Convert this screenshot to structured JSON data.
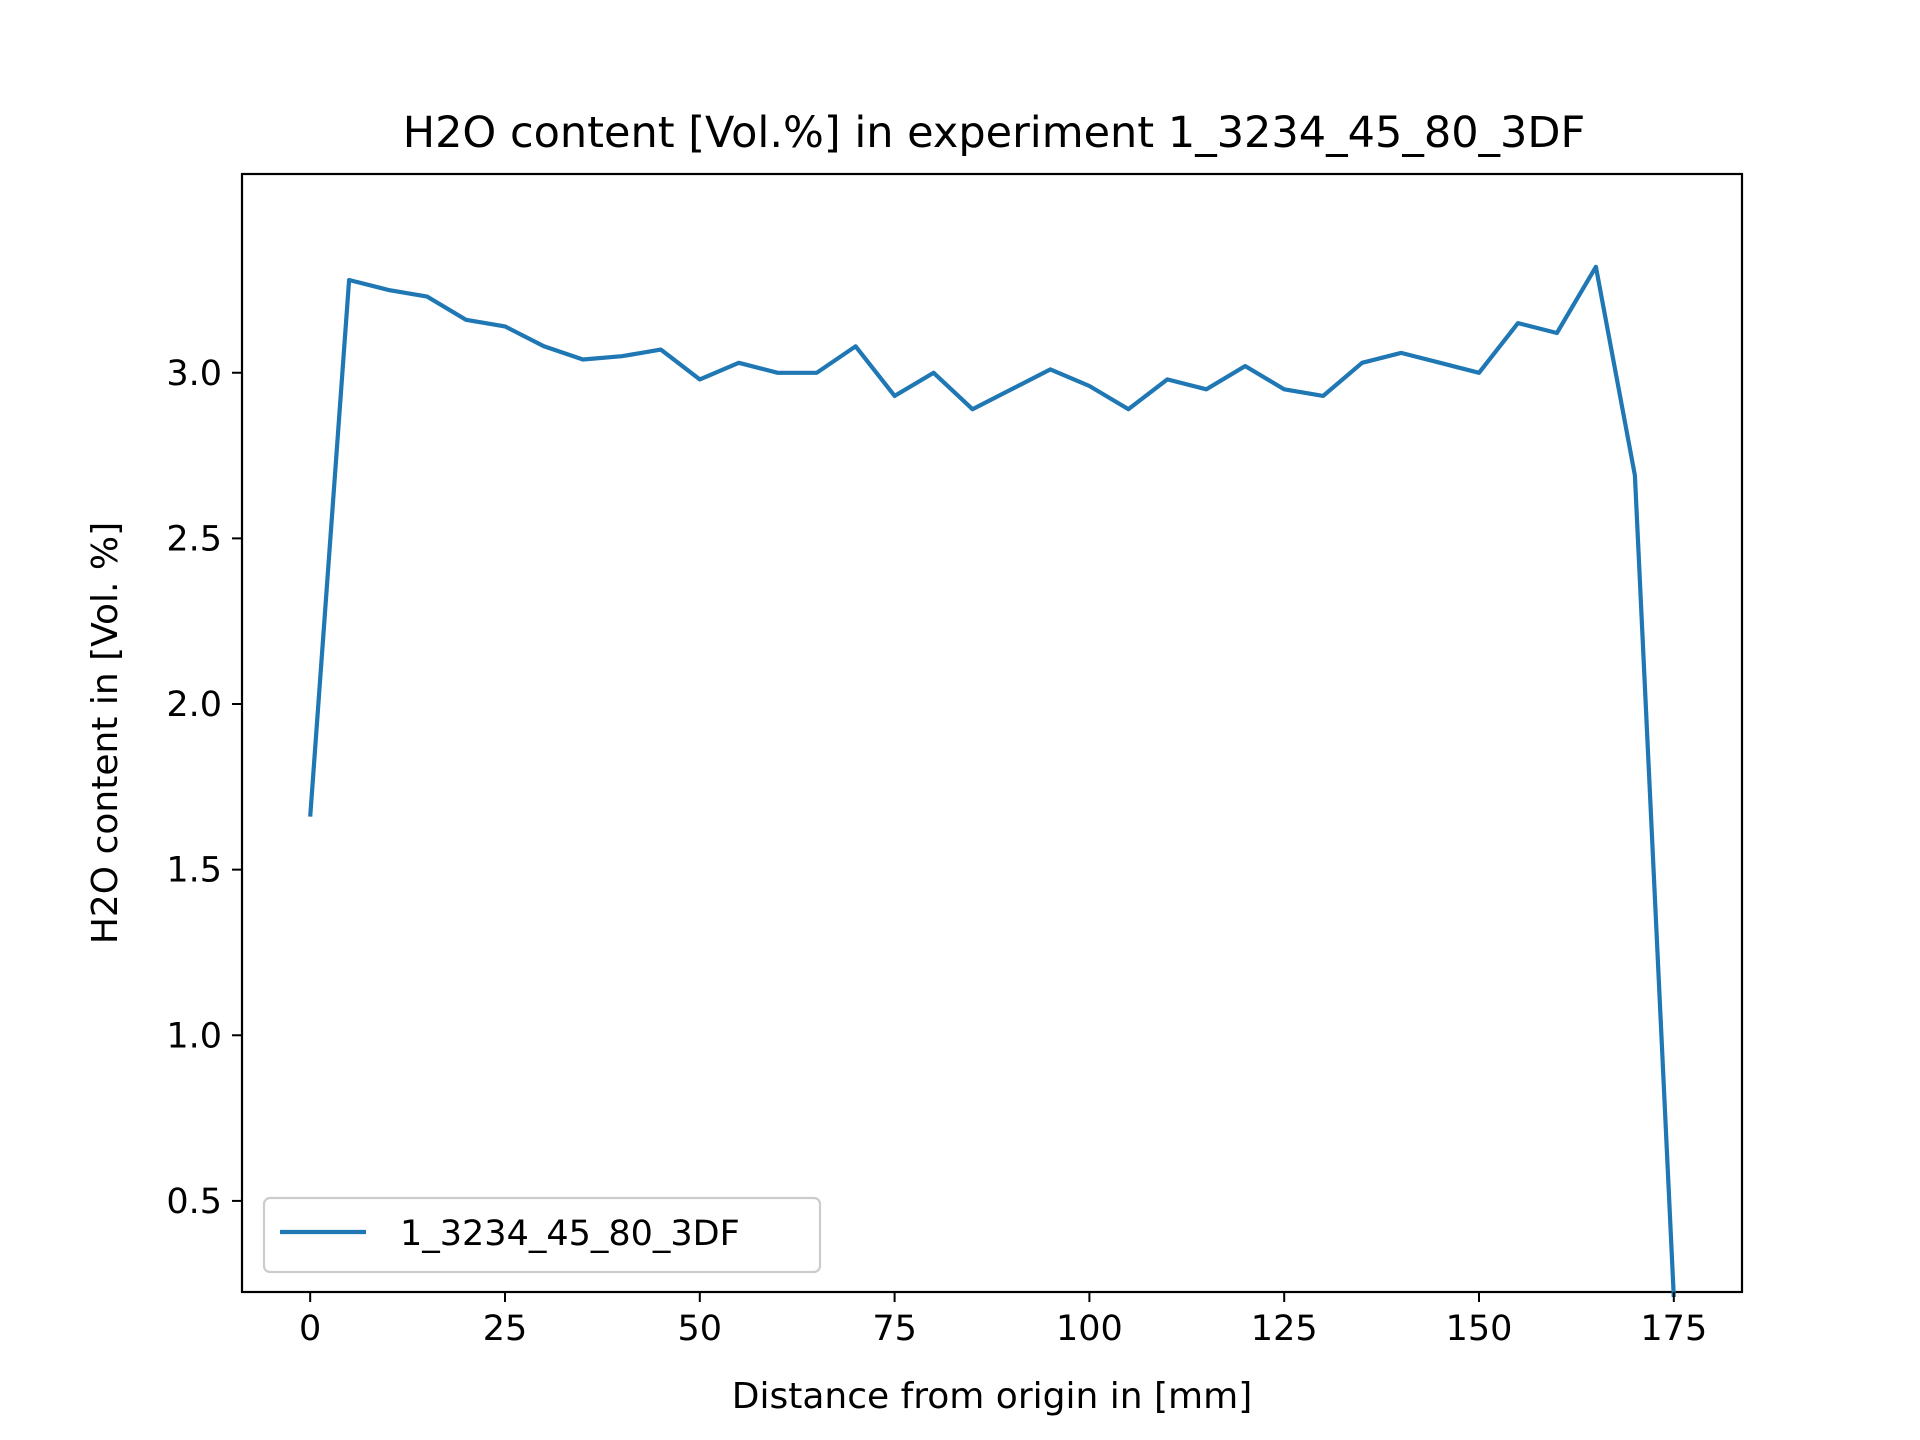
{
  "chart_data": {
    "type": "line",
    "title": "H2O content [Vol.%] in experiment 1_3234_45_80_3DF",
    "xlabel": "Distance from origin in [mm]",
    "ylabel": "H2O content in [Vol. %]",
    "xlim": [
      -8.75,
      183.75
    ],
    "ylim": [
      0.225,
      3.6
    ],
    "xticks": [
      0,
      25,
      50,
      75,
      100,
      125,
      150,
      175
    ],
    "xtick_labels": [
      "0",
      "25",
      "50",
      "75",
      "100",
      "125",
      "150",
      "175"
    ],
    "yticks": [
      0.5,
      1.0,
      1.5,
      2.0,
      2.5,
      3.0
    ],
    "ytick_labels": [
      "0.5",
      "1.0",
      "1.5",
      "2.0",
      "2.5",
      "3.0"
    ],
    "grid": false,
    "legend_position": "lower-left",
    "series": [
      {
        "name": "1_3234_45_80_3DF",
        "color": "#1f77b4",
        "x": [
          0,
          5,
          10,
          15,
          20,
          25,
          30,
          35,
          40,
          45,
          50,
          55,
          60,
          65,
          70,
          75,
          80,
          85,
          90,
          95,
          100,
          105,
          110,
          115,
          120,
          125,
          130,
          135,
          140,
          145,
          150,
          155,
          160,
          165,
          170,
          175
        ],
        "y": [
          1.66,
          3.28,
          3.25,
          3.23,
          3.16,
          3.14,
          3.08,
          3.04,
          3.05,
          3.07,
          2.98,
          3.03,
          3.0,
          3.0,
          3.08,
          2.93,
          3.0,
          2.89,
          2.95,
          3.01,
          2.96,
          2.89,
          2.98,
          2.95,
          3.02,
          2.95,
          2.93,
          3.03,
          3.06,
          3.03,
          3.0,
          3.15,
          3.12,
          3.32,
          2.69,
          0.21
        ]
      }
    ]
  }
}
